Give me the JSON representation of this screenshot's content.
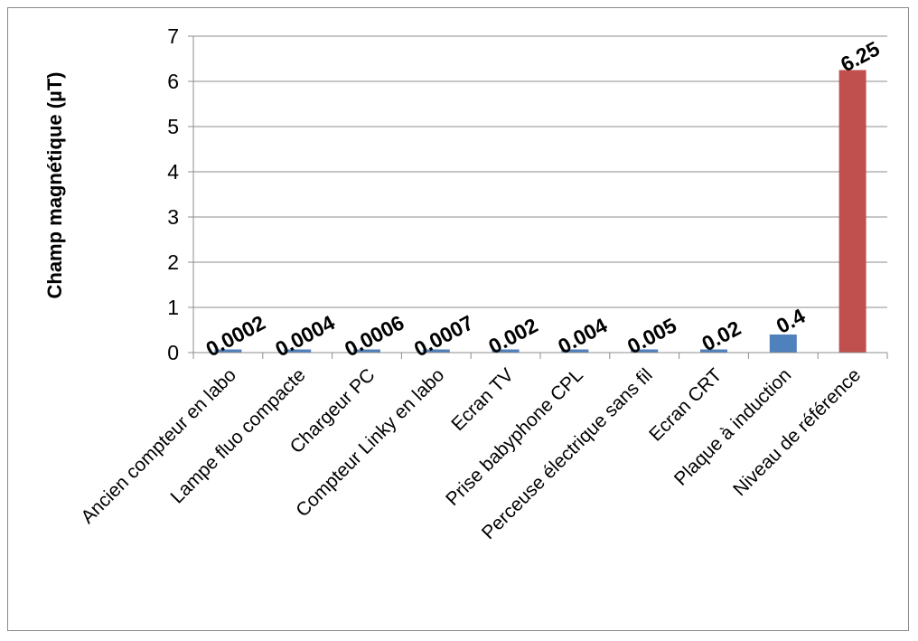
{
  "chart_data": {
    "type": "bar",
    "title": "",
    "xlabel": "",
    "ylabel": "Champ magnétique  (µT)",
    "ylim": [
      0,
      7
    ],
    "y_ticks": [
      0,
      1,
      2,
      3,
      4,
      5,
      6,
      7
    ],
    "grid": true,
    "legend": "none",
    "categories": [
      "Ancien compteur en labo",
      "Lampe fluo compacte",
      "Chargeur PC",
      "Compteur Linky en labo",
      "Ecran TV",
      "Prise babyphone CPL",
      "Perceuse électrique sans fil",
      "Ecran CRT",
      "Plaque à induction",
      "Niveau de référence"
    ],
    "values": [
      0.0002,
      0.0004,
      0.0006,
      0.0007,
      0.002,
      0.004,
      0.005,
      0.02,
      0.4,
      6.25
    ],
    "data_labels": [
      "0.0002",
      "0.0004",
      "0.0006",
      "0.0007",
      "0.002",
      "0.004",
      "0.005",
      "0.02",
      "0.4",
      "6.25"
    ],
    "colors": [
      "#4f81bd",
      "#4f81bd",
      "#4f81bd",
      "#4f81bd",
      "#4f81bd",
      "#4f81bd",
      "#4f81bd",
      "#4f81bd",
      "#4f81bd",
      "#c0504d"
    ]
  }
}
